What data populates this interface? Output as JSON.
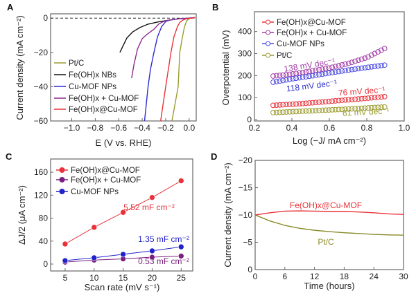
{
  "panel_labels": [
    "A",
    "B",
    "C",
    "D"
  ],
  "chart_data": [
    {
      "panel": "A",
      "type": "line",
      "xlabel": "E (V vs. RHE)",
      "ylabel": "Current density (mA cm⁻²)",
      "xlim": [
        -1.18,
        0.06
      ],
      "ylim": [
        -60,
        2.5
      ],
      "xticks": [
        -1.0,
        -0.8,
        -0.6,
        -0.4,
        -0.2,
        0.0
      ],
      "xtick_labels": [
        "−1.0",
        "−0.8",
        "−0.6",
        "−0.4",
        "−0.2",
        "0.0"
      ],
      "yticks": [
        0,
        -20,
        -40,
        -60
      ],
      "ytick_labels": [
        "0",
        "−20",
        "−40",
        "−60"
      ],
      "reference_line": {
        "y": 0,
        "style": "dashed"
      },
      "legend_position": "bottom-left",
      "series": [
        {
          "name": "Pt/C",
          "color": "#9b9b2e",
          "x": [
            0.05,
            0.0,
            -0.02,
            -0.04,
            -0.06,
            -0.08,
            -0.094,
            -0.12,
            -0.147
          ],
          "y": [
            0.3,
            -0.3,
            -1.5,
            -5,
            -12,
            -20,
            -40,
            -50,
            -60
          ]
        },
        {
          "name": "Fe(OH)x NBs",
          "color": "#111111",
          "x": [
            0.05,
            0.0,
            -0.1,
            -0.15,
            -0.25,
            -0.35,
            -0.42,
            -0.48,
            -0.53,
            -0.59
          ],
          "y": [
            0.3,
            0,
            -0.5,
            -1,
            -2,
            -3.5,
            -5.5,
            -8,
            -11.5,
            -20
          ]
        },
        {
          "name": "Cu-MOF NPs",
          "color": "#2b2bd6",
          "x": [
            0.05,
            0.0,
            -0.1,
            -0.17,
            -0.2,
            -0.235,
            -0.27,
            -0.3,
            -0.33,
            -0.35,
            -0.38
          ],
          "y": [
            0.3,
            0,
            -0.5,
            -1.2,
            -2,
            -5,
            -11,
            -20,
            -30,
            -40,
            -60
          ]
        },
        {
          "name": "Fe(OH)x + Cu-MOF",
          "color": "#8e2a90",
          "x": [
            0.05,
            0.0,
            -0.1,
            -0.18,
            -0.22,
            -0.26,
            -0.3,
            -0.33,
            -0.36,
            -0.4,
            -0.44,
            -0.47,
            -0.49
          ],
          "y": [
            0.3,
            0,
            -0.5,
            -1.2,
            -2,
            -3.5,
            -6.5,
            -8,
            -9.5,
            -12,
            -18,
            -27,
            -35
          ]
        },
        {
          "name": "Fe(OH)x@Cu-MOF",
          "color": "#e8323a",
          "x": [
            0.05,
            0.0,
            -0.03,
            -0.05,
            -0.08,
            -0.1,
            -0.13,
            -0.155,
            -0.2,
            -0.243
          ],
          "y": [
            0.3,
            -0.2,
            -0.5,
            -1,
            -2.5,
            -5,
            -11,
            -20,
            -40,
            -60
          ]
        }
      ],
      "legend": [
        "Pt/C",
        "Fe(OH)x NBs",
        "Cu-MOF NPs",
        "Fe(OH)x + Cu-MOF",
        "Fe(OH)x@Cu-MOF"
      ]
    },
    {
      "panel": "B",
      "type": "scatter",
      "xlabel": "Log (−J/ mA cm⁻²)",
      "ylabel": "Overpotential (mV)",
      "xlim": [
        0.2,
        1.0
      ],
      "ylim": [
        -6,
        490
      ],
      "xticks": [
        0.2,
        0.4,
        0.6,
        0.8,
        1.0
      ],
      "xtick_labels": [
        "0.2",
        "0.4",
        "0.6",
        "0.8",
        "1.0"
      ],
      "yticks": [
        0,
        100,
        200,
        300,
        400
      ],
      "ytick_labels": [
        "0",
        "100",
        "200",
        "300",
        "400"
      ],
      "legend_position": "top-left",
      "marker": "open-circle",
      "series": [
        {
          "name": "Fe(OH)x@Cu-MOF",
          "color": "#e8323a",
          "x": [
            0.3,
            0.4,
            0.5,
            0.6,
            0.7,
            0.8,
            0.9
          ],
          "y": [
            65,
            70,
            76,
            83,
            90,
            97,
            105
          ]
        },
        {
          "name": "Fe(OH)x + Cu-MOF",
          "color": "#a23ca6",
          "x": [
            0.3,
            0.4,
            0.5,
            0.6,
            0.7,
            0.8,
            0.9
          ],
          "y": [
            198,
            207,
            220,
            235,
            255,
            282,
            325
          ]
        },
        {
          "name": "Cu-MOF NPs",
          "color": "#4a4ae0",
          "x": [
            0.3,
            0.4,
            0.5,
            0.6,
            0.7,
            0.8,
            0.9
          ],
          "y": [
            170,
            185,
            198,
            212,
            225,
            237,
            248
          ]
        },
        {
          "name": "Pt/C",
          "color": "#9b9b2e",
          "x": [
            0.3,
            0.4,
            0.5,
            0.6,
            0.7,
            0.8,
            0.9
          ],
          "y": [
            32,
            36,
            40,
            44,
            48,
            53,
            58
          ]
        }
      ],
      "legend": [
        "Fe(OH)x@Cu-MOF",
        "Fe(OH)x + Cu-MOF",
        "Cu-MOF NPs",
        "Pt/C"
      ],
      "annotations": [
        {
          "text": "138 mV dec⁻¹",
          "color": "#a23ca6"
        },
        {
          "text": "118 mV dec⁻¹",
          "color": "#3333cc"
        },
        {
          "text": "76 mV dec⁻¹",
          "color": "#e8323a"
        },
        {
          "text": "61 mV dec⁻¹",
          "color": "#9b9b2e"
        }
      ]
    },
    {
      "panel": "C",
      "type": "line",
      "xlabel": "Scan rate (mV s⁻¹)",
      "ylabel": "ΔJ/2 (μA cm⁻²)",
      "xlim": [
        2.5,
        27
      ],
      "ylim": [
        -12,
        183
      ],
      "xticks": [
        5,
        10,
        15,
        20,
        25
      ],
      "xtick_labels": [
        "5",
        "10",
        "15",
        "20",
        "25"
      ],
      "yticks": [
        0,
        40,
        80,
        120,
        160
      ],
      "ytick_labels": [
        "0",
        "40",
        "80",
        "120",
        "160"
      ],
      "legend_position": "top-left",
      "marker": "filled-sphere",
      "series": [
        {
          "name": "Fe(OH)x@Cu-MOF",
          "color": "#e8323a",
          "x": [
            5,
            10,
            15,
            20,
            25
          ],
          "y": [
            35,
            64,
            90,
            116,
            145
          ]
        },
        {
          "name": "Fe(OH)x + Cu-MOF",
          "color": "#7a1f7e",
          "x": [
            5,
            10,
            15,
            20,
            25
          ],
          "y": [
            3.5,
            7,
            9,
            12,
            14
          ]
        },
        {
          "name": "Cu-MOF NPs",
          "color": "#2222cc",
          "x": [
            5,
            10,
            15,
            20,
            25
          ],
          "y": [
            6,
            11,
            17,
            23,
            30
          ]
        }
      ],
      "legend": [
        "Fe(OH)x@Cu-MOF",
        "Fe(OH)x + Cu-MOF",
        "Cu-MOF NPs"
      ],
      "annotations": [
        {
          "text": "5.52 mF cm⁻²",
          "color": "#e8323a"
        },
        {
          "text": "1.35 mF cm⁻²",
          "color": "#2222cc"
        },
        {
          "text": "0.53 mF cm⁻²",
          "color": "#7a1f7e"
        }
      ]
    },
    {
      "panel": "D",
      "type": "line",
      "xlabel": "Time (hours)",
      "ylabel": "Current density (mA cm⁻²)",
      "xlim": [
        0,
        30
      ],
      "ylim": [
        0,
        -20
      ],
      "xticks": [
        0,
        6,
        12,
        18,
        24,
        30
      ],
      "xtick_labels": [
        "0",
        "6",
        "12",
        "18",
        "24",
        "30"
      ],
      "yticks": [
        0,
        -5,
        -10,
        -15,
        -20
      ],
      "ytick_labels": [
        "0",
        "−5",
        "−10",
        "−15",
        "−20"
      ],
      "series": [
        {
          "name": "Fe(OH)x@Cu-MOF",
          "color": "#e8323a",
          "x": [
            0,
            3,
            6,
            9,
            12,
            15,
            18,
            21,
            24,
            27,
            30
          ],
          "y": [
            -10,
            -10.4,
            -10.7,
            -10.75,
            -10.7,
            -10.65,
            -10.65,
            -10.55,
            -10.4,
            -10.2,
            -10.1
          ]
        },
        {
          "name": "Pt/C",
          "color": "#8a8a2a",
          "x": [
            0,
            3,
            6,
            9,
            12,
            15,
            18,
            21,
            24,
            27,
            30
          ],
          "y": [
            -10,
            -8.9,
            -8.1,
            -7.55,
            -7.2,
            -6.95,
            -6.75,
            -6.6,
            -6.45,
            -6.35,
            -6.3
          ]
        }
      ],
      "annotations": [
        {
          "text": "Fe(OH)x@Cu-MOF",
          "color": "#e8323a"
        },
        {
          "text": "Pt/C",
          "color": "#8a8a2a"
        }
      ]
    }
  ]
}
